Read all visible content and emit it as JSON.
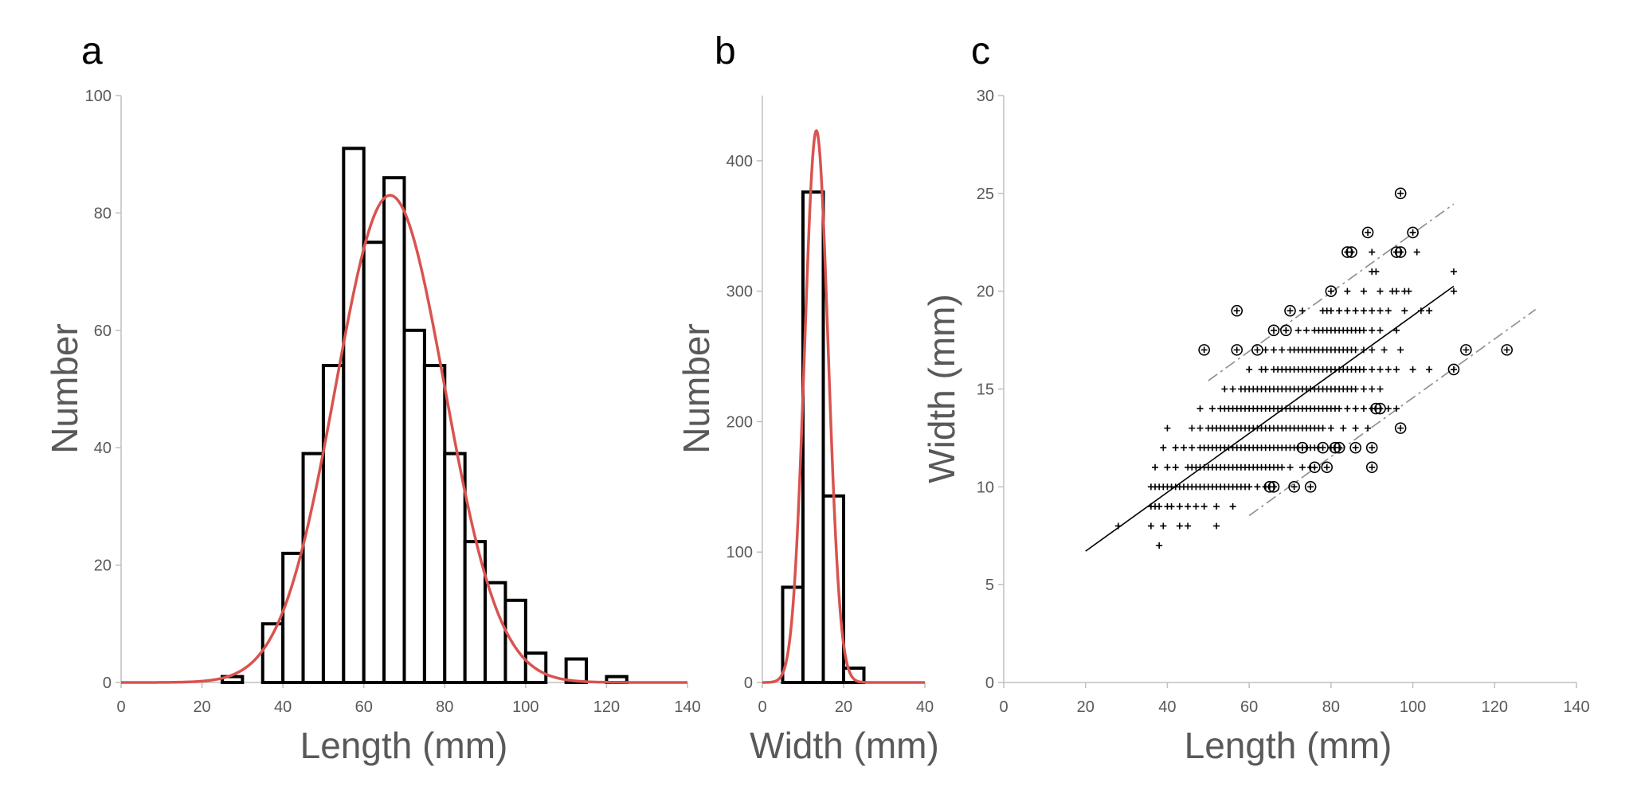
{
  "chart_data": [
    {
      "panel": "a",
      "type": "bar",
      "subtype": "histogram-with-normal-fit",
      "xlabel": "Length (mm)",
      "ylabel": "Number",
      "xlim": [
        0,
        140
      ],
      "ylim": [
        0,
        100
      ],
      "xticks": [
        0,
        20,
        40,
        60,
        80,
        100,
        120,
        140
      ],
      "yticks": [
        0,
        20,
        40,
        60,
        80,
        100
      ],
      "bin_width": 5,
      "bins": [
        {
          "from": 25,
          "to": 30,
          "count": 1
        },
        {
          "from": 35,
          "to": 40,
          "count": 10
        },
        {
          "from": 40,
          "to": 45,
          "count": 22
        },
        {
          "from": 45,
          "to": 50,
          "count": 39
        },
        {
          "from": 50,
          "to": 55,
          "count": 54
        },
        {
          "from": 55,
          "to": 60,
          "count": 91
        },
        {
          "from": 60,
          "to": 65,
          "count": 75
        },
        {
          "from": 65,
          "to": 70,
          "count": 86
        },
        {
          "from": 70,
          "to": 75,
          "count": 60
        },
        {
          "from": 75,
          "to": 80,
          "count": 54
        },
        {
          "from": 80,
          "to": 85,
          "count": 39
        },
        {
          "from": 85,
          "to": 90,
          "count": 24
        },
        {
          "from": 90,
          "to": 95,
          "count": 17
        },
        {
          "from": 95,
          "to": 100,
          "count": 14
        },
        {
          "from": 100,
          "to": 105,
          "count": 5
        },
        {
          "from": 110,
          "to": 115,
          "count": 4
        },
        {
          "from": 120,
          "to": 125,
          "count": 1
        }
      ],
      "fit": {
        "type": "normal",
        "mean": 66.5,
        "sd": 13.5,
        "peak": 83,
        "color": "#d9534f"
      }
    },
    {
      "panel": "b",
      "type": "bar",
      "subtype": "histogram-with-normal-fit",
      "xlabel": "Width (mm)",
      "ylabel": "Number",
      "xlim": [
        0,
        40
      ],
      "ylim": [
        0,
        450
      ],
      "xticks": [
        0,
        20,
        40
      ],
      "yticks": [
        0,
        100,
        200,
        300,
        400
      ],
      "bin_width": 5,
      "bins": [
        {
          "from": 5,
          "to": 10,
          "count": 73
        },
        {
          "from": 10,
          "to": 15,
          "count": 376
        },
        {
          "from": 15,
          "to": 20,
          "count": 143
        },
        {
          "from": 20,
          "to": 25,
          "count": 11
        }
      ],
      "fit": {
        "type": "normal",
        "mean": 13.3,
        "sd": 2.9,
        "peak": 423,
        "color": "#d9534f"
      }
    },
    {
      "panel": "c",
      "type": "scatter",
      "xlabel": "Length (mm)",
      "ylabel": "Width (mm)",
      "xlim": [
        0,
        140
      ],
      "ylim": [
        0,
        30
      ],
      "xticks": [
        0,
        20,
        40,
        60,
        80,
        100,
        120,
        140
      ],
      "yticks": [
        0,
        5,
        10,
        15,
        20,
        25,
        30
      ],
      "regression": {
        "slope": 0.1505,
        "intercept": 3.7,
        "x_range": [
          20,
          110
        ]
      },
      "bands": [
        {
          "offset": 4.2,
          "x_range": [
            50,
            110
          ]
        },
        {
          "offset": -4.2,
          "x_range": [
            60,
            130
          ]
        }
      ],
      "rows": [
        {
          "y": 7,
          "x": [
            38
          ]
        },
        {
          "y": 8,
          "x": [
            28,
            36,
            39,
            43,
            45,
            52
          ]
        },
        {
          "y": 9,
          "x": [
            36,
            37,
            38,
            40,
            41,
            43,
            45,
            47,
            49,
            52,
            56
          ]
        },
        {
          "y": 10,
          "x": [
            36,
            37,
            38,
            39,
            40,
            41,
            42,
            43,
            44,
            45,
            46,
            47,
            48,
            49,
            50,
            51,
            52,
            53,
            54,
            55,
            56,
            57,
            58,
            59,
            60,
            62,
            64
          ]
        },
        {
          "y": 11,
          "x": [
            37,
            40,
            42,
            45,
            46,
            47,
            48,
            49,
            50,
            51,
            52,
            53,
            54,
            55,
            56,
            57,
            58,
            59,
            60,
            61,
            62,
            63,
            64,
            65,
            66,
            67,
            68,
            70,
            73,
            75
          ]
        },
        {
          "y": 12,
          "x": [
            39,
            42,
            44,
            46,
            48,
            49,
            50,
            51,
            52,
            53,
            54,
            55,
            56,
            57,
            58,
            59,
            60,
            61,
            62,
            63,
            64,
            65,
            66,
            67,
            68,
            69,
            70,
            71,
            72,
            73,
            74,
            75,
            76,
            77,
            80
          ]
        },
        {
          "y": 13,
          "x": [
            40,
            46,
            48,
            50,
            51,
            52,
            53,
            54,
            55,
            56,
            57,
            58,
            59,
            60,
            61,
            62,
            63,
            64,
            65,
            66,
            67,
            68,
            69,
            70,
            71,
            72,
            73,
            74,
            75,
            76,
            77,
            78,
            80,
            83,
            86,
            89
          ]
        },
        {
          "y": 14,
          "x": [
            48,
            51,
            53,
            54,
            55,
            56,
            57,
            58,
            59,
            60,
            61,
            62,
            63,
            64,
            65,
            66,
            67,
            68,
            69,
            70,
            71,
            72,
            73,
            74,
            75,
            76,
            77,
            78,
            79,
            80,
            81,
            82,
            84,
            86,
            88,
            90,
            94,
            96
          ]
        },
        {
          "y": 15,
          "x": [
            54,
            56,
            58,
            59,
            60,
            61,
            62,
            63,
            64,
            65,
            66,
            67,
            68,
            69,
            70,
            71,
            72,
            73,
            74,
            75,
            76,
            77,
            78,
            79,
            80,
            81,
            82,
            83,
            84,
            85,
            86,
            88,
            90,
            92
          ]
        },
        {
          "y": 16,
          "x": [
            60,
            63,
            64,
            66,
            67,
            68,
            69,
            70,
            71,
            72,
            73,
            74,
            75,
            76,
            77,
            78,
            79,
            80,
            81,
            82,
            83,
            84,
            85,
            86,
            87,
            88,
            90,
            92,
            94,
            96,
            100,
            104
          ]
        },
        {
          "y": 17,
          "x": [
            64,
            66,
            68,
            70,
            71,
            72,
            73,
            74,
            75,
            76,
            77,
            78,
            79,
            80,
            81,
            82,
            83,
            84,
            85,
            86,
            88,
            90,
            93,
            97
          ]
        },
        {
          "y": 18,
          "x": [
            69,
            72,
            74,
            76,
            77,
            78,
            79,
            80,
            81,
            82,
            83,
            84,
            85,
            86,
            87,
            88,
            90,
            92,
            96
          ]
        },
        {
          "y": 19,
          "x": [
            73,
            78,
            79,
            80,
            82,
            84,
            86,
            88,
            90,
            92,
            94,
            98,
            102,
            104
          ]
        },
        {
          "y": 20,
          "x": [
            84,
            88,
            92,
            95,
            96,
            98,
            99,
            110
          ]
        },
        {
          "y": 21,
          "x": [
            90,
            91,
            110
          ]
        },
        {
          "y": 22,
          "x": [
            90,
            101
          ]
        }
      ],
      "circled_points": [
        [
          97,
          25
        ],
        [
          89,
          23
        ],
        [
          100,
          23
        ],
        [
          84,
          22
        ],
        [
          85,
          22
        ],
        [
          96,
          22
        ],
        [
          97,
          22
        ],
        [
          80,
          20
        ],
        [
          57,
          19
        ],
        [
          70,
          19
        ],
        [
          49,
          17
        ],
        [
          57,
          17
        ],
        [
          62,
          17
        ],
        [
          113,
          17
        ],
        [
          123,
          17
        ],
        [
          66,
          18
        ],
        [
          69,
          18
        ],
        [
          110,
          16
        ],
        [
          91,
          14
        ],
        [
          92,
          14
        ],
        [
          97,
          13
        ],
        [
          73,
          12
        ],
        [
          78,
          12
        ],
        [
          81,
          12
        ],
        [
          82,
          12
        ],
        [
          86,
          12
        ],
        [
          90,
          12
        ],
        [
          76,
          11
        ],
        [
          79,
          11
        ],
        [
          90,
          11
        ],
        [
          65,
          10
        ],
        [
          66,
          10
        ],
        [
          71,
          10
        ],
        [
          75,
          10
        ]
      ]
    }
  ]
}
